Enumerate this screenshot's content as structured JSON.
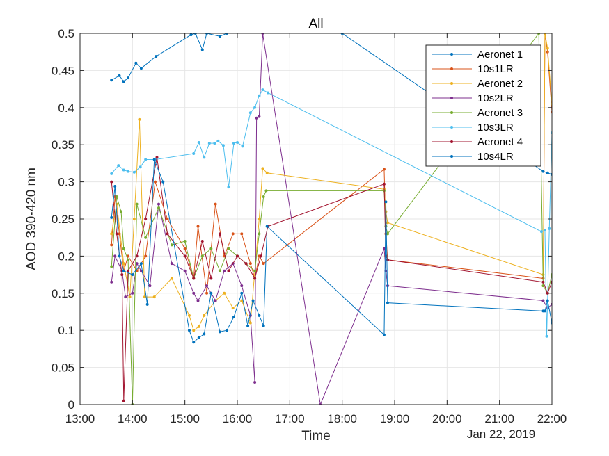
{
  "chart_data": {
    "type": "line",
    "title": "All",
    "xlabel": "Time",
    "ylabel": "AOD 390-420 nm",
    "date_label": "Jan 22, 2019",
    "xlim": [
      "13:00",
      "22:00"
    ],
    "ylim": [
      0,
      0.5
    ],
    "xticks": [
      "13:00",
      "14:00",
      "15:00",
      "16:00",
      "17:00",
      "18:00",
      "19:00",
      "20:00",
      "21:00",
      "22:00"
    ],
    "yticks": [
      "0",
      "0.05",
      "0.1",
      "0.15",
      "0.2",
      "0.25",
      "0.3",
      "0.35",
      "0.4",
      "0.45",
      "0.5"
    ],
    "grid": true,
    "legend_position": "top-right",
    "series": [
      {
        "name": "Aeronet 1",
        "color": "#0072BD",
        "points": [
          [
            "13:36",
            0.437
          ],
          [
            "13:45",
            0.443
          ],
          [
            "13:50",
            0.435
          ],
          [
            "13:55",
            0.44
          ],
          [
            "14:04",
            0.46
          ],
          [
            "14:10",
            0.453
          ],
          [
            "14:27",
            0.469
          ],
          [
            "15:07",
            0.498
          ],
          [
            "15:12",
            0.5
          ],
          [
            "15:20",
            0.478
          ],
          [
            "15:25",
            0.5
          ],
          [
            "15:40",
            0.496
          ],
          [
            "15:48",
            0.5
          ],
          [
            "18:00",
            0.5
          ],
          [
            "21:50",
            0.314
          ],
          [
            "21:55",
            0.312
          ],
          [
            "22:00",
            0.31
          ]
        ]
      },
      {
        "name": "10s1LR",
        "color": "#D95319",
        "points": [
          [
            "13:36",
            0.215
          ],
          [
            "13:40",
            0.28
          ],
          [
            "13:45",
            0.23
          ],
          [
            "13:50",
            0.18
          ],
          [
            "13:55",
            0.2
          ],
          [
            "14:05",
            0.18
          ],
          [
            "14:15",
            0.2
          ],
          [
            "14:26",
            0.3
          ],
          [
            "14:40",
            0.25
          ],
          [
            "15:00",
            0.21
          ],
          [
            "15:10",
            0.17
          ],
          [
            "15:15",
            0.24
          ],
          [
            "15:25",
            0.15
          ],
          [
            "15:35",
            0.27
          ],
          [
            "15:45",
            0.2
          ],
          [
            "15:55",
            0.23
          ],
          [
            "16:05",
            0.23
          ],
          [
            "16:15",
            0.19
          ],
          [
            "16:20",
            0.17
          ],
          [
            "16:25",
            0.2
          ],
          [
            "16:30",
            0.19
          ],
          [
            "18:48",
            0.317
          ],
          [
            "18:50",
            0.23
          ],
          [
            "18:52",
            0.195
          ],
          [
            "21:50",
            0.17
          ],
          [
            "21:52",
            0.5
          ],
          [
            "21:55",
            0.475
          ],
          [
            "22:00",
            0.394
          ]
        ]
      },
      {
        "name": "Aeronet 2",
        "color": "#EDB120",
        "points": [
          [
            "13:36",
            0.23
          ],
          [
            "13:42",
            0.27
          ],
          [
            "13:50",
            0.19
          ],
          [
            "13:57",
            0.145
          ],
          [
            "14:02",
            0.25
          ],
          [
            "14:08",
            0.384
          ],
          [
            "14:14",
            0.145
          ],
          [
            "14:25",
            0.145
          ],
          [
            "14:45",
            0.17
          ],
          [
            "15:05",
            0.12
          ],
          [
            "15:10",
            0.1
          ],
          [
            "15:16",
            0.105
          ],
          [
            "15:22",
            0.12
          ],
          [
            "15:35",
            0.14
          ],
          [
            "15:45",
            0.15
          ],
          [
            "15:55",
            0.13
          ],
          [
            "16:05",
            0.14
          ],
          [
            "16:15",
            0.11
          ],
          [
            "16:25",
            0.25
          ],
          [
            "16:29",
            0.318
          ],
          [
            "16:34",
            0.312
          ],
          [
            "18:48",
            0.29
          ],
          [
            "18:50",
            0.26
          ],
          [
            "18:52",
            0.245
          ],
          [
            "21:50",
            0.175
          ],
          [
            "21:52",
            0.5
          ],
          [
            "21:55",
            0.48
          ],
          [
            "22:00",
            0.405
          ]
        ]
      },
      {
        "name": "10s2LR",
        "color": "#7E2F8E",
        "points": [
          [
            "13:36",
            0.165
          ],
          [
            "13:40",
            0.2
          ],
          [
            "13:48",
            0.18
          ],
          [
            "13:52",
            0.145
          ],
          [
            "14:00",
            0.15
          ],
          [
            "14:05",
            0.19
          ],
          [
            "14:10",
            0.18
          ],
          [
            "14:20",
            0.16
          ],
          [
            "14:30",
            0.27
          ],
          [
            "14:45",
            0.19
          ],
          [
            "15:00",
            0.18
          ],
          [
            "15:10",
            0.15
          ],
          [
            "15:15",
            0.14
          ],
          [
            "15:25",
            0.16
          ],
          [
            "15:35",
            0.14
          ],
          [
            "15:45",
            0.18
          ],
          [
            "15:55",
            0.19
          ],
          [
            "16:05",
            0.16
          ],
          [
            "16:15",
            0.12
          ],
          [
            "16:20",
            0.03
          ],
          [
            "16:22",
            0.386
          ],
          [
            "16:25",
            0.388
          ],
          [
            "16:29",
            0.5
          ],
          [
            "17:35",
            0.0
          ],
          [
            "18:48",
            0.21
          ],
          [
            "18:50",
            0.18
          ],
          [
            "18:52",
            0.16
          ],
          [
            "21:50",
            0.14
          ],
          [
            "21:55",
            0.13
          ],
          [
            "22:00",
            0.135
          ]
        ]
      },
      {
        "name": "Aeronet 3",
        "color": "#77AC30",
        "points": [
          [
            "13:36",
            0.186
          ],
          [
            "13:42",
            0.28
          ],
          [
            "13:47",
            0.26
          ],
          [
            "13:50",
            0.21
          ],
          [
            "13:55",
            0.195
          ],
          [
            "14:00",
            0.0
          ],
          [
            "14:05",
            0.27
          ],
          [
            "14:15",
            0.225
          ],
          [
            "14:30",
            0.265
          ],
          [
            "14:45",
            0.215
          ],
          [
            "15:00",
            0.22
          ],
          [
            "15:10",
            0.17
          ],
          [
            "15:20",
            0.2
          ],
          [
            "15:30",
            0.21
          ],
          [
            "15:40",
            0.18
          ],
          [
            "15:50",
            0.21
          ],
          [
            "16:00",
            0.2
          ],
          [
            "16:10",
            0.19
          ],
          [
            "16:20",
            0.18
          ],
          [
            "16:25",
            0.23
          ],
          [
            "16:30",
            0.28
          ],
          [
            "16:33",
            0.288
          ],
          [
            "18:48",
            0.288
          ],
          [
            "18:50",
            0.24
          ],
          [
            "18:52",
            0.23
          ],
          [
            "21:45",
            0.5
          ],
          [
            "21:50",
            0.16
          ],
          [
            "21:55",
            0.15
          ],
          [
            "22:00",
            0.175
          ]
        ]
      },
      {
        "name": "10s3LR",
        "color": "#4DBEEE",
        "points": [
          [
            "13:36",
            0.311
          ],
          [
            "13:44",
            0.322
          ],
          [
            "13:50",
            0.316
          ],
          [
            "13:55",
            0.314
          ],
          [
            "14:02",
            0.313
          ],
          [
            "14:09",
            0.32
          ],
          [
            "14:15",
            0.33
          ],
          [
            "14:26",
            0.33
          ],
          [
            "15:10",
            0.338
          ],
          [
            "15:16",
            0.353
          ],
          [
            "15:22",
            0.333
          ],
          [
            "15:28",
            0.352
          ],
          [
            "15:34",
            0.352
          ],
          [
            "15:38",
            0.355
          ],
          [
            "15:44",
            0.349
          ],
          [
            "15:50",
            0.293
          ],
          [
            "15:56",
            0.352
          ],
          [
            "16:00",
            0.353
          ],
          [
            "16:06",
            0.348
          ],
          [
            "16:15",
            0.393
          ],
          [
            "16:20",
            0.4
          ],
          [
            "16:25",
            0.416
          ],
          [
            "16:29",
            0.424
          ],
          [
            "16:35",
            0.42
          ],
          [
            "21:48",
            0.233
          ],
          [
            "21:52",
            0.235
          ],
          [
            "21:54",
            0.092
          ],
          [
            "21:57",
            0.237
          ],
          [
            "22:00",
            0.366
          ]
        ]
      },
      {
        "name": "Aeronet 4",
        "color": "#A2142F",
        "points": [
          [
            "13:36",
            0.3
          ],
          [
            "13:42",
            0.23
          ],
          [
            "13:48",
            0.175
          ],
          [
            "13:50",
            0.005
          ],
          [
            "13:55",
            0.18
          ],
          [
            "14:05",
            0.2
          ],
          [
            "14:15",
            0.25
          ],
          [
            "14:28",
            0.333
          ],
          [
            "14:40",
            0.23
          ],
          [
            "15:00",
            0.2
          ],
          [
            "15:10",
            0.17
          ],
          [
            "15:20",
            0.22
          ],
          [
            "15:30",
            0.17
          ],
          [
            "15:40",
            0.23
          ],
          [
            "15:50",
            0.18
          ],
          [
            "16:00",
            0.2
          ],
          [
            "16:10",
            0.19
          ],
          [
            "16:20",
            0.17
          ],
          [
            "16:27",
            0.2
          ],
          [
            "16:35",
            0.24
          ],
          [
            "18:48",
            0.297
          ],
          [
            "18:50",
            0.2
          ],
          [
            "18:52",
            0.195
          ],
          [
            "21:50",
            0.165
          ],
          [
            "21:55",
            0.15
          ],
          [
            "22:00",
            0.165
          ]
        ]
      },
      {
        "name": "10s4LR",
        "color": "#0072BD",
        "points": [
          [
            "13:36",
            0.252
          ],
          [
            "13:40",
            0.294
          ],
          [
            "13:45",
            0.2
          ],
          [
            "13:50",
            0.18
          ],
          [
            "14:00",
            0.175
          ],
          [
            "14:10",
            0.19
          ],
          [
            "14:17",
            0.135
          ],
          [
            "14:25",
            0.33
          ],
          [
            "14:35",
            0.3
          ],
          [
            "15:05",
            0.1
          ],
          [
            "15:10",
            0.084
          ],
          [
            "15:16",
            0.09
          ],
          [
            "15:22",
            0.095
          ],
          [
            "15:30",
            0.15
          ],
          [
            "15:40",
            0.098
          ],
          [
            "15:48",
            0.1
          ],
          [
            "15:56",
            0.118
          ],
          [
            "16:05",
            0.15
          ],
          [
            "16:12",
            0.106
          ],
          [
            "16:18",
            0.14
          ],
          [
            "16:25",
            0.12
          ],
          [
            "16:30",
            0.106
          ],
          [
            "16:34",
            0.24
          ],
          [
            "18:48",
            0.094
          ],
          [
            "18:50",
            0.273
          ],
          [
            "18:52",
            0.137
          ],
          [
            "21:50",
            0.126
          ],
          [
            "21:52",
            0.126
          ],
          [
            "21:55",
            0.14
          ],
          [
            "22:00",
            0.11
          ]
        ]
      }
    ]
  }
}
